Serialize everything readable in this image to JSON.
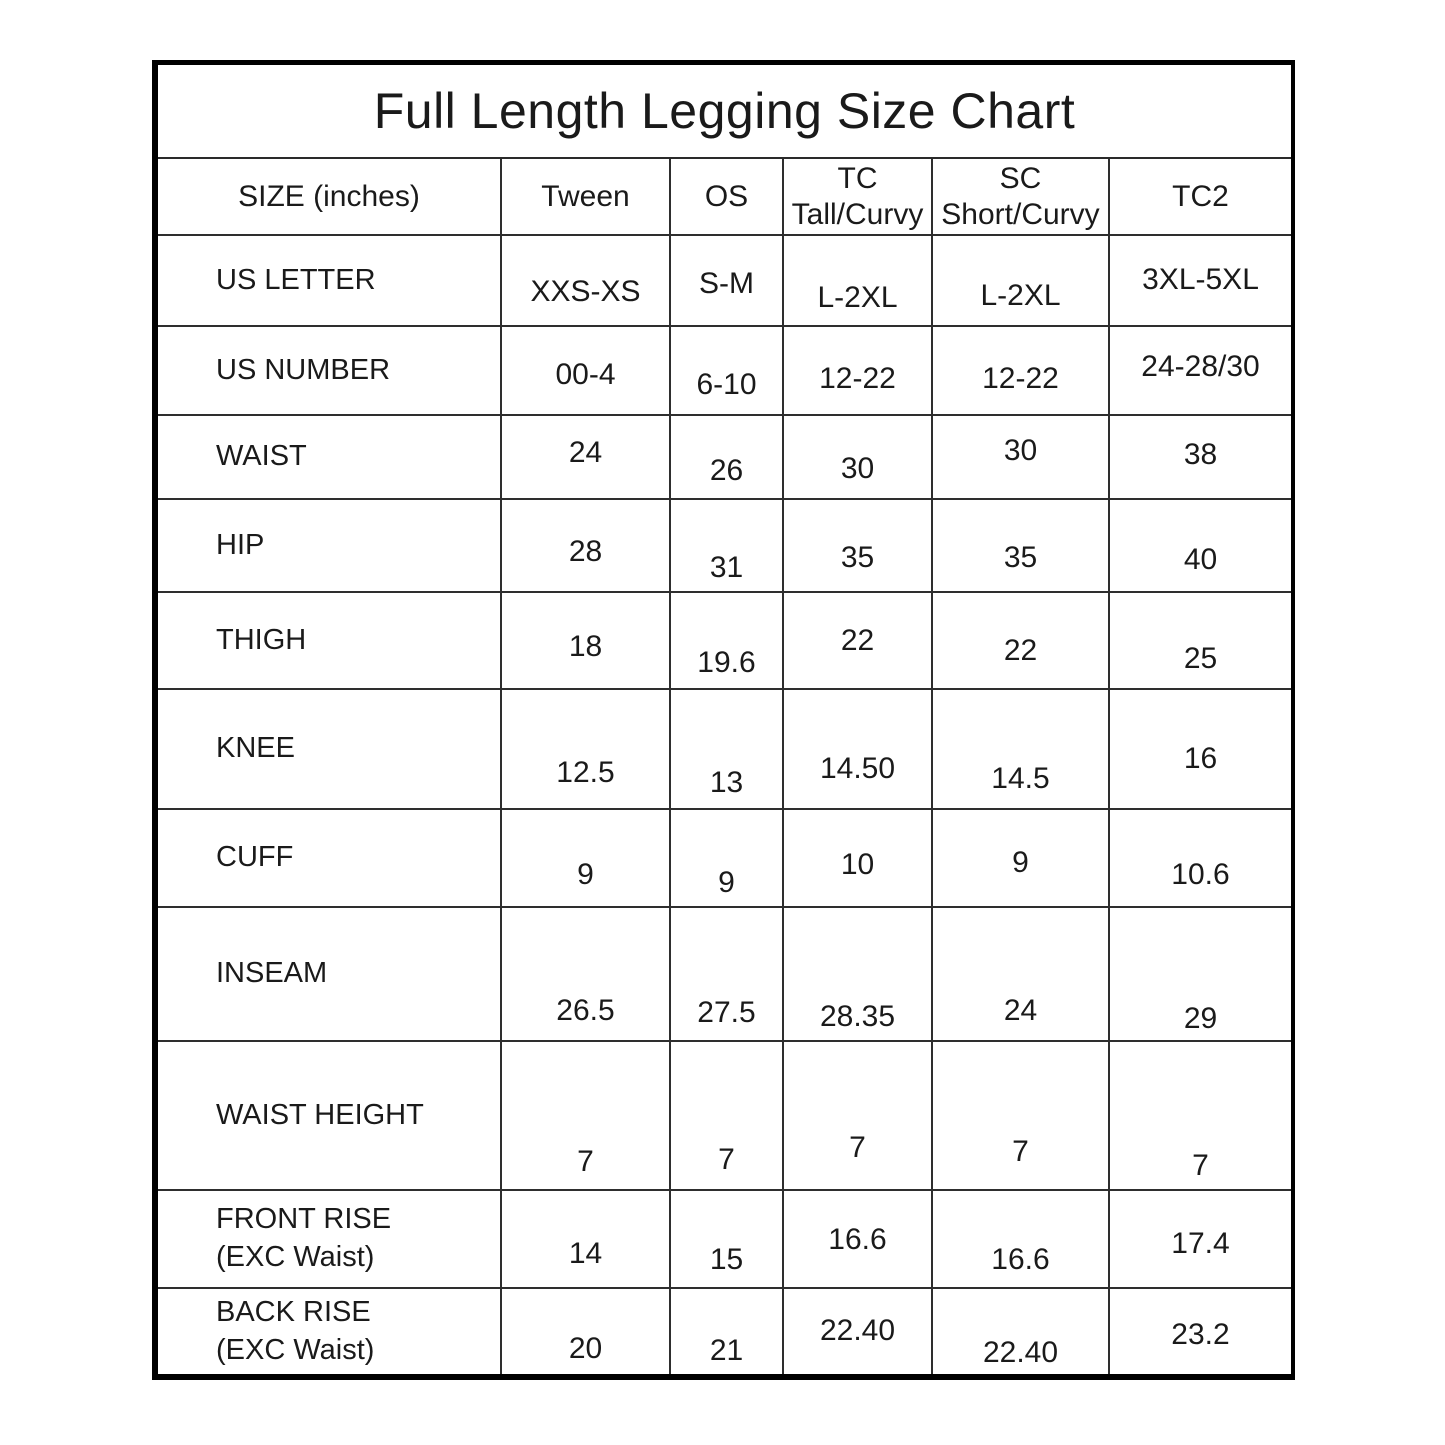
{
  "title": "Full Length Legging Size Chart",
  "colors": {
    "background": "#ffffff",
    "outer_border": "#000000",
    "grid_line": "#2e2e2e",
    "text": "#1a1a1a"
  },
  "chart_data": {
    "type": "table",
    "title": "Full Length Legging Size Chart",
    "size_header": "SIZE (inches)",
    "column_headers": [
      {
        "lines": [
          "SIZE (inches)"
        ]
      },
      {
        "lines": [
          "Tween"
        ]
      },
      {
        "lines": [
          "OS"
        ]
      },
      {
        "lines": [
          "TC",
          "Tall/Curvy"
        ]
      },
      {
        "lines": [
          "SC",
          "Short/Curvy"
        ]
      },
      {
        "lines": [
          "TC2"
        ]
      }
    ],
    "rows": [
      {
        "label": "US LETTER",
        "values": [
          "XXS-XS",
          "S-M",
          "L-2XL",
          "L-2XL",
          "3XL-5XL"
        ]
      },
      {
        "label": "US NUMBER",
        "values": [
          "00-4",
          "6-10",
          "12-22",
          "12-22",
          "24-28/30"
        ]
      },
      {
        "label": "WAIST",
        "values": [
          "24",
          "26",
          "30",
          "30",
          "38"
        ]
      },
      {
        "label": "HIP",
        "values": [
          "28",
          "31",
          "35",
          "35",
          "40"
        ]
      },
      {
        "label": "THIGH",
        "values": [
          "18",
          "19.6",
          "22",
          "22",
          "25"
        ]
      },
      {
        "label": "KNEE",
        "values": [
          "12.5",
          "13",
          "14.50",
          "14.5",
          "16"
        ]
      },
      {
        "label": "CUFF",
        "values": [
          "9",
          "9",
          "10",
          "9",
          "10.6"
        ]
      },
      {
        "label": "INSEAM",
        "values": [
          "26.5",
          "27.5",
          "28.35",
          "24",
          "29"
        ]
      },
      {
        "label": "WAIST HEIGHT",
        "values": [
          "7",
          "7",
          "7",
          "7",
          "7"
        ]
      },
      {
        "label": "FRONT RISE",
        "label2": "(EXC Waist)",
        "values": [
          "14",
          "15",
          "16.6",
          "16.6",
          "17.4"
        ]
      },
      {
        "label": "BACK RISE",
        "label2": "(EXC Waist)",
        "values": [
          "20",
          "21",
          "22.40",
          "22.40",
          "23.2"
        ]
      }
    ],
    "layout": {
      "grid": true,
      "legend": false,
      "units": "inches"
    }
  }
}
